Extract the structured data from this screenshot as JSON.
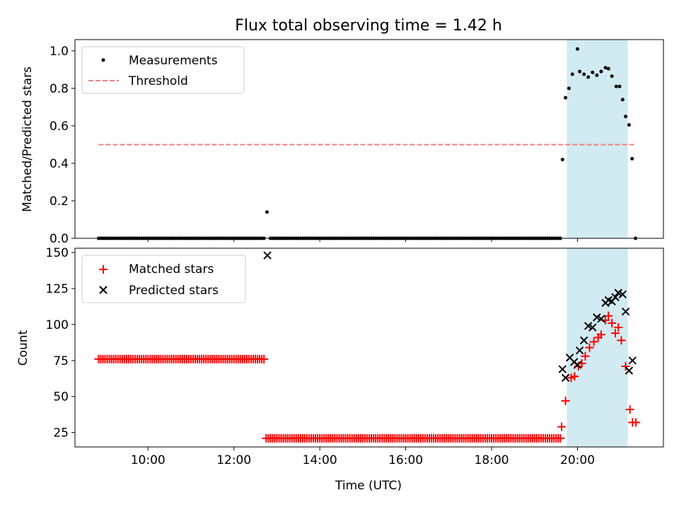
{
  "chart_data": [
    {
      "type": "scatter",
      "title": "Flux total observing time = 1.42 h",
      "xlabel": "",
      "ylabel": "Matched/Predicted stars",
      "xlim_hours": [
        8.3,
        22.0
      ],
      "ylim": [
        0.0,
        1.06
      ],
      "yticks": [
        0.0,
        0.2,
        0.4,
        0.6,
        0.8,
        1.0
      ],
      "ytick_labels": [
        "0.0",
        "0.2",
        "0.4",
        "0.6",
        "0.8",
        "1.0"
      ],
      "legend_position": "top-left",
      "highlight_span": {
        "x0": 19.75,
        "x1": 21.17,
        "color": "#add8e6"
      },
      "threshold": {
        "name": "Threshold",
        "value": 0.5,
        "x0": 8.85,
        "x1": 21.35,
        "color": "#f08080"
      },
      "measurements": {
        "name": "Measurements",
        "color": "#000000",
        "zero_segments": [
          {
            "start": 8.85,
            "end": 12.7,
            "step": 0.05
          },
          {
            "start": 12.85,
            "end": 19.6,
            "step": 0.05
          }
        ],
        "points": [
          [
            12.77,
            0.14
          ],
          [
            19.65,
            0.42
          ],
          [
            19.72,
            0.75
          ],
          [
            19.8,
            0.8
          ],
          [
            19.88,
            0.875
          ],
          [
            20.0,
            1.01
          ],
          [
            20.05,
            0.89
          ],
          [
            20.15,
            0.875
          ],
          [
            20.25,
            0.86
          ],
          [
            20.35,
            0.885
          ],
          [
            20.45,
            0.87
          ],
          [
            20.55,
            0.89
          ],
          [
            20.65,
            0.91
          ],
          [
            20.72,
            0.905
          ],
          [
            20.8,
            0.865
          ],
          [
            20.9,
            0.81
          ],
          [
            20.98,
            0.81
          ],
          [
            21.05,
            0.74
          ],
          [
            21.12,
            0.65
          ],
          [
            21.2,
            0.605
          ],
          [
            21.27,
            0.425
          ],
          [
            21.35,
            0.0
          ]
        ]
      }
    },
    {
      "type": "scatter",
      "xlabel": "Time (UTC)",
      "ylabel": "Count",
      "xlim_hours": [
        8.3,
        22.0
      ],
      "ylim": [
        15,
        153
      ],
      "yticks": [
        25,
        50,
        75,
        100,
        125,
        150
      ],
      "ytick_labels": [
        "25",
        "50",
        "75",
        "100",
        "125",
        "150"
      ],
      "xticks_hours": [
        10,
        12,
        14,
        16,
        18,
        20
      ],
      "xtick_labels": [
        "10:00",
        "12:00",
        "14:00",
        "16:00",
        "18:00",
        "20:00"
      ],
      "legend_position": "top-left",
      "highlight_span": {
        "x0": 19.75,
        "x1": 21.17,
        "color": "#add8e6"
      },
      "matched": {
        "name": "Matched stars",
        "color": "#ff0000",
        "constant_segments": [
          {
            "start": 8.85,
            "end": 12.7,
            "step": 0.05,
            "value": 76
          },
          {
            "start": 12.75,
            "end": 19.6,
            "step": 0.05,
            "value": 21
          }
        ],
        "points": [
          [
            19.63,
            29
          ],
          [
            19.72,
            47
          ],
          [
            19.85,
            63
          ],
          [
            19.93,
            64
          ],
          [
            20.02,
            71
          ],
          [
            20.1,
            73
          ],
          [
            20.18,
            78
          ],
          [
            20.28,
            84
          ],
          [
            20.38,
            88
          ],
          [
            20.48,
            91
          ],
          [
            20.55,
            93
          ],
          [
            20.65,
            103
          ],
          [
            20.72,
            106
          ],
          [
            20.8,
            101
          ],
          [
            20.88,
            94
          ],
          [
            20.95,
            98
          ],
          [
            21.02,
            89
          ],
          [
            21.12,
            71
          ],
          [
            21.22,
            41
          ],
          [
            21.28,
            32
          ],
          [
            21.36,
            32
          ]
        ]
      },
      "predicted": {
        "name": "Predicted stars",
        "color": "#000000",
        "points": [
          [
            12.78,
            148
          ],
          [
            19.65,
            69
          ],
          [
            19.72,
            63
          ],
          [
            19.82,
            77
          ],
          [
            19.92,
            74
          ],
          [
            20.0,
            72
          ],
          [
            20.05,
            82
          ],
          [
            20.15,
            89
          ],
          [
            20.25,
            99
          ],
          [
            20.35,
            98
          ],
          [
            20.45,
            105
          ],
          [
            20.55,
            104
          ],
          [
            20.65,
            115
          ],
          [
            20.72,
            117
          ],
          [
            20.8,
            116
          ],
          [
            20.88,
            119
          ],
          [
            20.95,
            122
          ],
          [
            21.05,
            121
          ],
          [
            21.12,
            109
          ],
          [
            21.2,
            68
          ],
          [
            21.28,
            75
          ]
        ]
      }
    }
  ]
}
